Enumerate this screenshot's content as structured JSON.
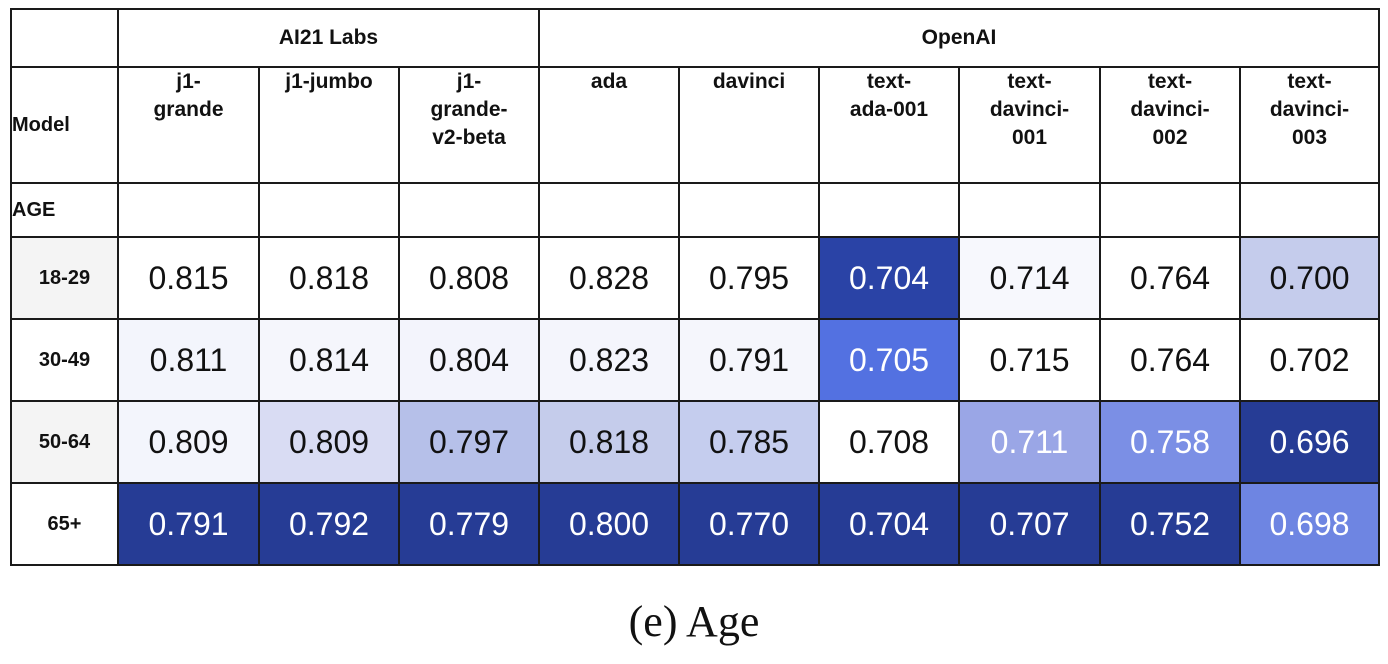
{
  "chart_data": {
    "type": "heatmap",
    "column_groups": [
      {
        "name": "AI21 Labs",
        "span": 3
      },
      {
        "name": "OpenAI",
        "span": 6
      }
    ],
    "corner_label": "Model",
    "section_label": "AGE",
    "columns": [
      "j1-\ngrande",
      "j1-jumbo",
      "j1-\ngrande-\nv2-beta",
      "ada",
      "davinci",
      "text-\nada-001",
      "text-\ndavinci-\n001",
      "text-\ndavinci-\n002",
      "text-\ndavinci-\n003"
    ],
    "rows": [
      {
        "label": "18-29",
        "values": [
          "0.815",
          "0.818",
          "0.808",
          "0.828",
          "0.795",
          "0.704",
          "0.714",
          "0.764",
          "0.700"
        ]
      },
      {
        "label": "30-49",
        "values": [
          "0.811",
          "0.814",
          "0.804",
          "0.823",
          "0.791",
          "0.705",
          "0.715",
          "0.764",
          "0.702"
        ]
      },
      {
        "label": "50-64",
        "values": [
          "0.809",
          "0.809",
          "0.797",
          "0.818",
          "0.785",
          "0.708",
          "0.711",
          "0.758",
          "0.696"
        ]
      },
      {
        "label": "65+",
        "values": [
          "0.791",
          "0.792",
          "0.779",
          "0.800",
          "0.770",
          "0.704",
          "0.707",
          "0.752",
          "0.698"
        ]
      }
    ],
    "cell_colors": [
      [
        "#ffffff",
        "#ffffff",
        "#ffffff",
        "#ffffff",
        "#ffffff",
        "#2a43a6",
        "#f7f8fd",
        "#ffffff",
        "#c5ccec"
      ],
      [
        "#f3f5fc",
        "#f5f6fc",
        "#f3f4fc",
        "#f4f5fc",
        "#f5f6fc",
        "#5371e1",
        "#ffffff",
        "#ffffff",
        "#ffffff"
      ],
      [
        "#f3f5fc",
        "#d9dcf3",
        "#b6c0e9",
        "#c5cceb",
        "#c5cdee",
        "#ffffff",
        "#9aa6e6",
        "#7b8fe5",
        "#263c95"
      ],
      [
        "#263c95",
        "#263c95",
        "#263c95",
        "#263c95",
        "#263c95",
        "#263c95",
        "#263c95",
        "#263c95",
        "#6e85e2"
      ]
    ],
    "row_label_colors": [
      "#f4f4f4",
      "#ffffff",
      "#f4f4f4",
      "#ffffff"
    ],
    "caption": "(e) Age"
  }
}
